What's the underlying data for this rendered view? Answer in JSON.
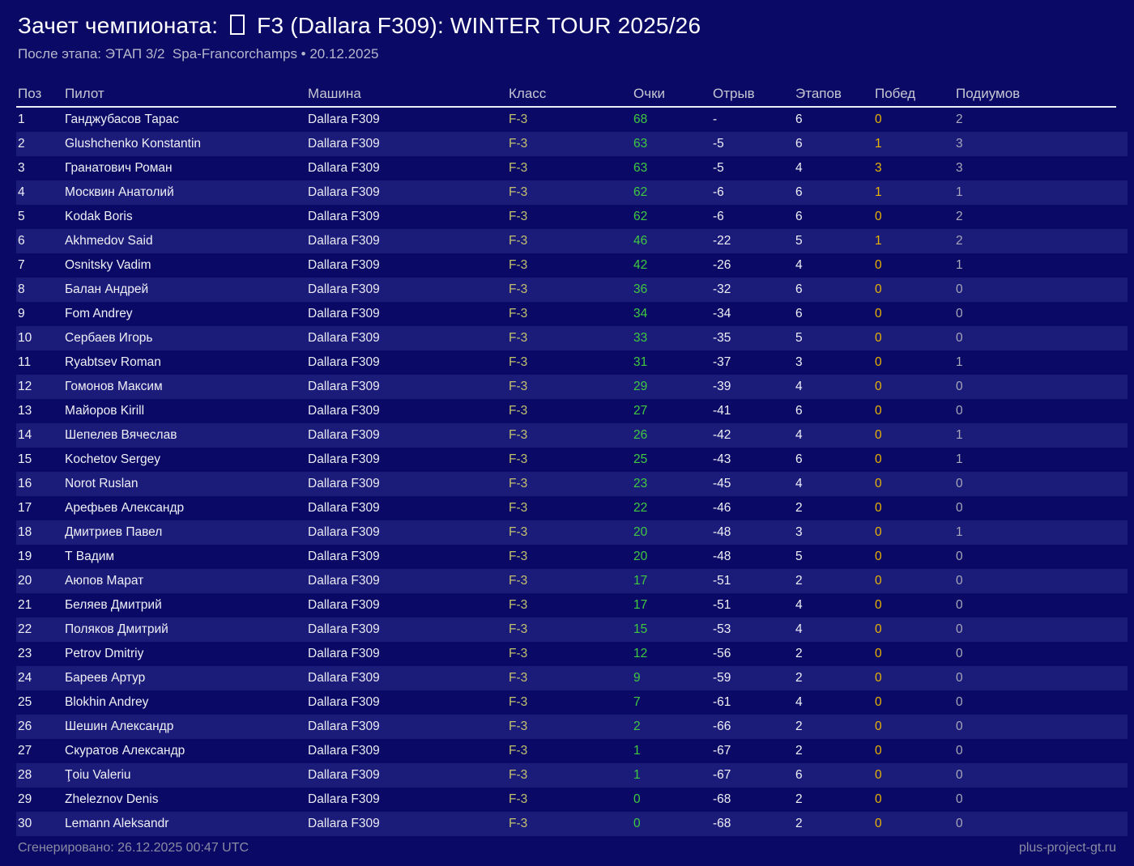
{
  "header": {
    "title_prefix": "Зачет чемпионата: ",
    "title_flag_icon": "missing-glyph-box",
    "title_suffix": " F3 (Dallara F309): WINTER TOUR 2025/26",
    "subtitle": "После этапа: ЭТАП 3/2  Spa-Francorchamps • 20.12.2025"
  },
  "colors": {
    "background": "#0a0a66",
    "row_stripe": "#1b1b7a",
    "points_green": "#3fc93f",
    "wins_gold": "#e8b400",
    "class_khaki": "#c3c06e",
    "podiums_gray": "#a8a8b8"
  },
  "table": {
    "columns": [
      {
        "key": "pos",
        "label": "Поз"
      },
      {
        "key": "pilot",
        "label": "Пилот"
      },
      {
        "key": "car",
        "label": "Машина"
      },
      {
        "key": "class",
        "label": "Класс"
      },
      {
        "key": "points",
        "label": "Очки"
      },
      {
        "key": "gap",
        "label": "Отрыв"
      },
      {
        "key": "stages",
        "label": "Этапов"
      },
      {
        "key": "wins",
        "label": "Побед"
      },
      {
        "key": "podiums",
        "label": "Подиумов"
      }
    ],
    "rows": [
      [
        "1",
        "Ганджубасов Тарас",
        "Dallara F309",
        "F-3",
        "68",
        "-",
        "6",
        "0",
        "2"
      ],
      [
        "2",
        "Glushchenko Konstantin",
        "Dallara F309",
        "F-3",
        "63",
        "-5",
        "6",
        "1",
        "3"
      ],
      [
        "3",
        "Гранатович Роман",
        "Dallara F309",
        "F-3",
        "63",
        "-5",
        "4",
        "3",
        "3"
      ],
      [
        "4",
        "Москвин Анатолий",
        "Dallara F309",
        "F-3",
        "62",
        "-6",
        "6",
        "1",
        "1"
      ],
      [
        "5",
        "Kodak Boris",
        "Dallara F309",
        "F-3",
        "62",
        "-6",
        "6",
        "0",
        "2"
      ],
      [
        "6",
        "Akhmedov Said",
        "Dallara F309",
        "F-3",
        "46",
        "-22",
        "5",
        "1",
        "2"
      ],
      [
        "7",
        "Osnitsky Vadim",
        "Dallara F309",
        "F-3",
        "42",
        "-26",
        "4",
        "0",
        "1"
      ],
      [
        "8",
        "Балан Андрей",
        "Dallara F309",
        "F-3",
        "36",
        "-32",
        "6",
        "0",
        "0"
      ],
      [
        "9",
        "Fom Andrey",
        "Dallara F309",
        "F-3",
        "34",
        "-34",
        "6",
        "0",
        "0"
      ],
      [
        "10",
        "Сербаев Игорь",
        "Dallara F309",
        "F-3",
        "33",
        "-35",
        "5",
        "0",
        "0"
      ],
      [
        "11",
        "Ryabtsev Roman",
        "Dallara F309",
        "F-3",
        "31",
        "-37",
        "3",
        "0",
        "1"
      ],
      [
        "12",
        "Гомонов Максим",
        "Dallara F309",
        "F-3",
        "29",
        "-39",
        "4",
        "0",
        "0"
      ],
      [
        "13",
        "Майоров Kirill",
        "Dallara F309",
        "F-3",
        "27",
        "-41",
        "6",
        "0",
        "0"
      ],
      [
        "14",
        "Шепелев Вячеслав",
        "Dallara F309",
        "F-3",
        "26",
        "-42",
        "4",
        "0",
        "1"
      ],
      [
        "15",
        "Kochetov Sergey",
        "Dallara F309",
        "F-3",
        "25",
        "-43",
        "6",
        "0",
        "1"
      ],
      [
        "16",
        "Norot Ruslan",
        "Dallara F309",
        "F-3",
        "23",
        "-45",
        "4",
        "0",
        "0"
      ],
      [
        "17",
        "Арефьев Александр",
        "Dallara F309",
        "F-3",
        "22",
        "-46",
        "2",
        "0",
        "0"
      ],
      [
        "18",
        "Дмитриев Павел",
        "Dallara F309",
        "F-3",
        "20",
        "-48",
        "3",
        "0",
        "1"
      ],
      [
        "19",
        "Т Вадим",
        "Dallara F309",
        "F-3",
        "20",
        "-48",
        "5",
        "0",
        "0"
      ],
      [
        "20",
        "Аюпов Марат",
        "Dallara F309",
        "F-3",
        "17",
        "-51",
        "2",
        "0",
        "0"
      ],
      [
        "21",
        "Беляев Дмитрий",
        "Dallara F309",
        "F-3",
        "17",
        "-51",
        "4",
        "0",
        "0"
      ],
      [
        "22",
        "Поляков Дмитрий",
        "Dallara F309",
        "F-3",
        "15",
        "-53",
        "4",
        "0",
        "0"
      ],
      [
        "23",
        "Petrov Dmitriy",
        "Dallara F309",
        "F-3",
        "12",
        "-56",
        "2",
        "0",
        "0"
      ],
      [
        "24",
        "Бареев Артур",
        "Dallara F309",
        "F-3",
        "9",
        "-59",
        "2",
        "0",
        "0"
      ],
      [
        "25",
        "Blokhin Andrey",
        "Dallara F309",
        "F-3",
        "7",
        "-61",
        "4",
        "0",
        "0"
      ],
      [
        "26",
        "Шешин Александр",
        "Dallara F309",
        "F-3",
        "2",
        "-66",
        "2",
        "0",
        "0"
      ],
      [
        "27",
        "Скуратов Александр",
        "Dallara F309",
        "F-3",
        "1",
        "-67",
        "2",
        "0",
        "0"
      ],
      [
        "28",
        "Ţoiu Valeriu",
        "Dallara F309",
        "F-3",
        "1",
        "-67",
        "6",
        "0",
        "0"
      ],
      [
        "29",
        "Zheleznov Denis",
        "Dallara F309",
        "F-3",
        "0",
        "-68",
        "2",
        "0",
        "0"
      ],
      [
        "30",
        "Lemann Aleksandr",
        "Dallara F309",
        "F-3",
        "0",
        "-68",
        "2",
        "0",
        "0"
      ]
    ]
  },
  "footer": {
    "generated": "Сгенерировано: 26.12.2025 00:47 UTC",
    "site": "plus-project-gt.ru"
  }
}
